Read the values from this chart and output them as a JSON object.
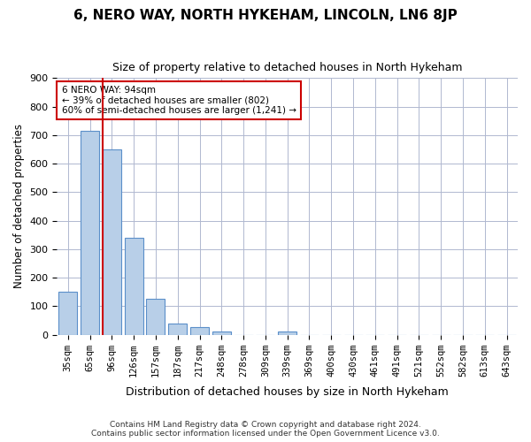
{
  "title": "6, NERO WAY, NORTH HYKEHAM, LINCOLN, LN6 8JP",
  "subtitle": "Size of property relative to detached houses in North Hykeham",
  "xlabel": "Distribution of detached houses by size in North Hykeham",
  "ylabel": "Number of detached properties",
  "categories": [
    "35sqm",
    "65sqm",
    "96sqm",
    "126sqm",
    "157sqm",
    "187sqm",
    "217sqm",
    "248sqm",
    "278sqm",
    "309sqm",
    "339sqm",
    "369sqm",
    "400sqm",
    "430sqm",
    "461sqm",
    "491sqm",
    "521sqm",
    "552sqm",
    "582sqm",
    "613sqm",
    "643sqm"
  ],
  "values": [
    150,
    715,
    650,
    340,
    125,
    38,
    28,
    10,
    0,
    0,
    10,
    0,
    0,
    0,
    0,
    0,
    0,
    0,
    0,
    0,
    0
  ],
  "bar_color": "#b8cfe8",
  "bar_edge_color": "#5b8fc9",
  "grid_color": "#b0b8d0",
  "background_color": "#ffffff",
  "red_line_x": 2,
  "annotation_text": "6 NERO WAY: 94sqm\n← 39% of detached houses are smaller (802)\n60% of semi-detached houses are larger (1,241) →",
  "annotation_box_color": "#ffffff",
  "annotation_box_edge": "#cc0000",
  "red_line_color": "#cc0000",
  "ylim": [
    0,
    900
  ],
  "yticks": [
    0,
    100,
    200,
    300,
    400,
    500,
    600,
    700,
    800,
    900
  ],
  "footer_line1": "Contains HM Land Registry data © Crown copyright and database right 2024.",
  "footer_line2": "Contains public sector information licensed under the Open Government Licence v3.0."
}
